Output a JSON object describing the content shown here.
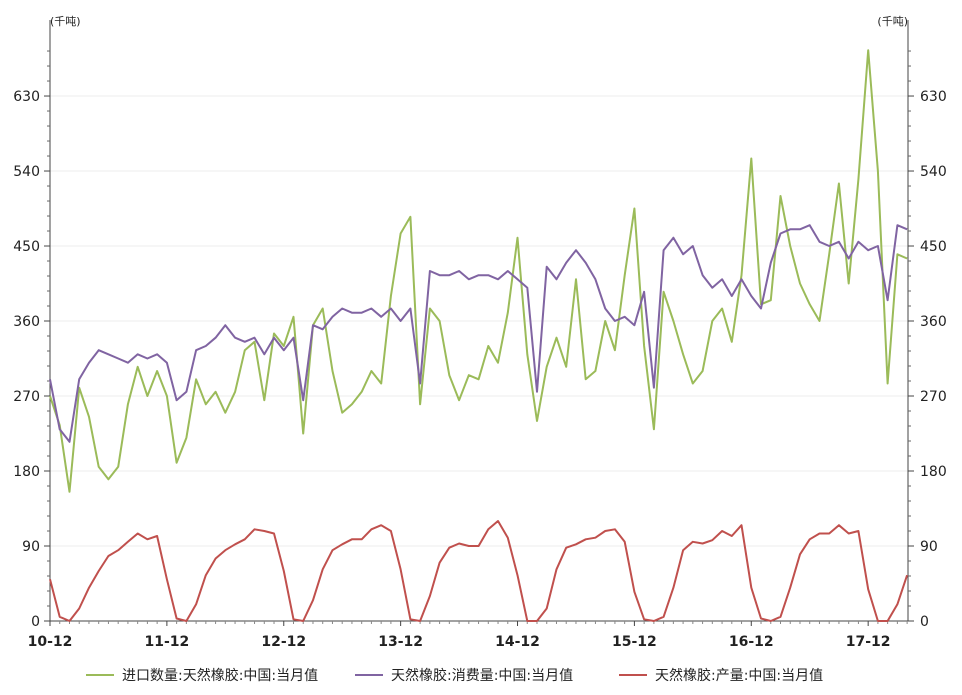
{
  "chart_data": {
    "type": "line",
    "title": "",
    "unit_left": "(千吨)",
    "unit_right": "(千吨)",
    "ylim": [
      0,
      690
    ],
    "y_ticks": [
      0,
      90,
      180,
      270,
      360,
      450,
      540,
      630
    ],
    "x_ticks": [
      "10-12",
      "11-12",
      "12-12",
      "13-12",
      "14-12",
      "15-12",
      "16-12",
      "17-12"
    ],
    "grid": true,
    "legend_position": "bottom",
    "colors": {
      "import": "#9bbb59",
      "consumption": "#8064a2",
      "production": "#c0504d"
    },
    "series": [
      {
        "name": "进口数量:天然橡胶:中国:当月值",
        "color": "#9bbb59",
        "values": [
          270,
          235,
          155,
          280,
          245,
          185,
          170,
          185,
          260,
          305,
          270,
          300,
          270,
          190,
          220,
          290,
          260,
          275,
          250,
          275,
          325,
          335,
          265,
          345,
          330,
          365,
          225,
          355,
          375,
          300,
          250,
          260,
          275,
          300,
          285,
          390,
          465,
          485,
          260,
          375,
          360,
          295,
          265,
          295,
          290,
          330,
          310,
          370,
          460,
          320,
          240,
          305,
          340,
          305,
          410,
          290,
          300,
          360,
          325,
          415,
          495,
          330,
          230,
          395,
          360,
          320,
          285,
          300,
          360,
          375,
          335,
          415,
          555,
          380,
          385,
          510,
          450,
          405,
          380,
          360,
          440,
          525,
          405,
          530,
          685,
          540,
          285,
          440,
          435
        ]
      },
      {
        "name": "天然橡胶:消费量:中国:当月值",
        "color": "#8064a2",
        "values": [
          290,
          230,
          215,
          290,
          310,
          325,
          320,
          315,
          310,
          320,
          315,
          320,
          310,
          265,
          275,
          325,
          330,
          340,
          355,
          340,
          335,
          340,
          320,
          340,
          325,
          340,
          265,
          355,
          350,
          365,
          375,
          370,
          370,
          375,
          365,
          375,
          360,
          375,
          285,
          420,
          415,
          415,
          420,
          410,
          415,
          415,
          410,
          420,
          410,
          400,
          275,
          425,
          410,
          430,
          445,
          430,
          410,
          375,
          360,
          365,
          355,
          395,
          280,
          445,
          460,
          440,
          450,
          415,
          400,
          410,
          390,
          410,
          390,
          375,
          430,
          465,
          470,
          470,
          475,
          455,
          450,
          455,
          435,
          455,
          445,
          450,
          385,
          475,
          470
        ]
      },
      {
        "name": "天然橡胶:产量:中国:当月值",
        "color": "#c0504d",
        "values": [
          50,
          5,
          0,
          15,
          40,
          60,
          78,
          85,
          95,
          105,
          98,
          102,
          50,
          3,
          0,
          20,
          55,
          75,
          85,
          92,
          98,
          110,
          108,
          105,
          60,
          2,
          0,
          25,
          62,
          85,
          92,
          98,
          98,
          110,
          115,
          108,
          62,
          2,
          0,
          30,
          70,
          88,
          93,
          90,
          90,
          110,
          120,
          100,
          55,
          0,
          0,
          15,
          62,
          88,
          92,
          98,
          100,
          108,
          110,
          95,
          35,
          2,
          0,
          5,
          40,
          85,
          95,
          93,
          97,
          108,
          102,
          115,
          40,
          3,
          0,
          5,
          40,
          80,
          98,
          105,
          105,
          115,
          105,
          108,
          38,
          0,
          0,
          20,
          55
        ]
      }
    ]
  }
}
